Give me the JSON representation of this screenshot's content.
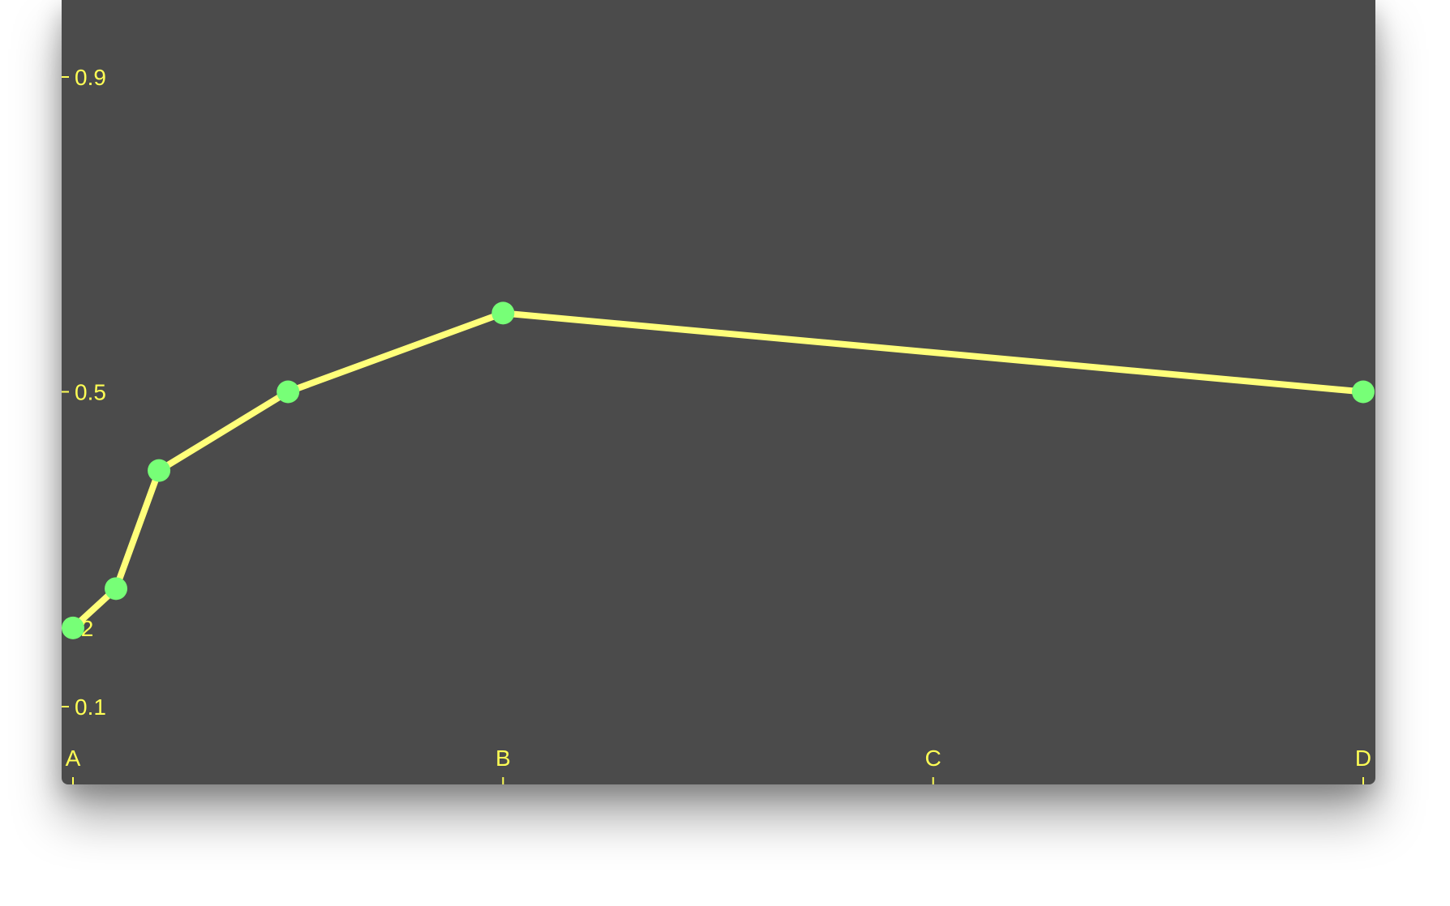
{
  "colors": {
    "background": "#4b4b4b",
    "axis": "#ffff55",
    "line": "#ffff7a",
    "marker": "#77ff77"
  },
  "chart_data": {
    "type": "line",
    "title": "",
    "xlabel": "",
    "ylabel": "",
    "x_categories": [
      "A",
      "B",
      "C",
      "D"
    ],
    "y_ticks": [
      "0.9",
      "0.5",
      ".2",
      "0.1"
    ],
    "ylim": [
      0.1,
      0.9
    ],
    "grid": false,
    "series": [
      {
        "points": [
          {
            "x": 0.0,
            "y": 0.2
          },
          {
            "x": 0.1,
            "y": 0.25
          },
          {
            "x": 0.2,
            "y": 0.4
          },
          {
            "x": 0.5,
            "y": 0.5
          },
          {
            "x": 1.0,
            "y": 0.6
          },
          {
            "x": 3.0,
            "y": 0.5
          }
        ]
      }
    ]
  }
}
